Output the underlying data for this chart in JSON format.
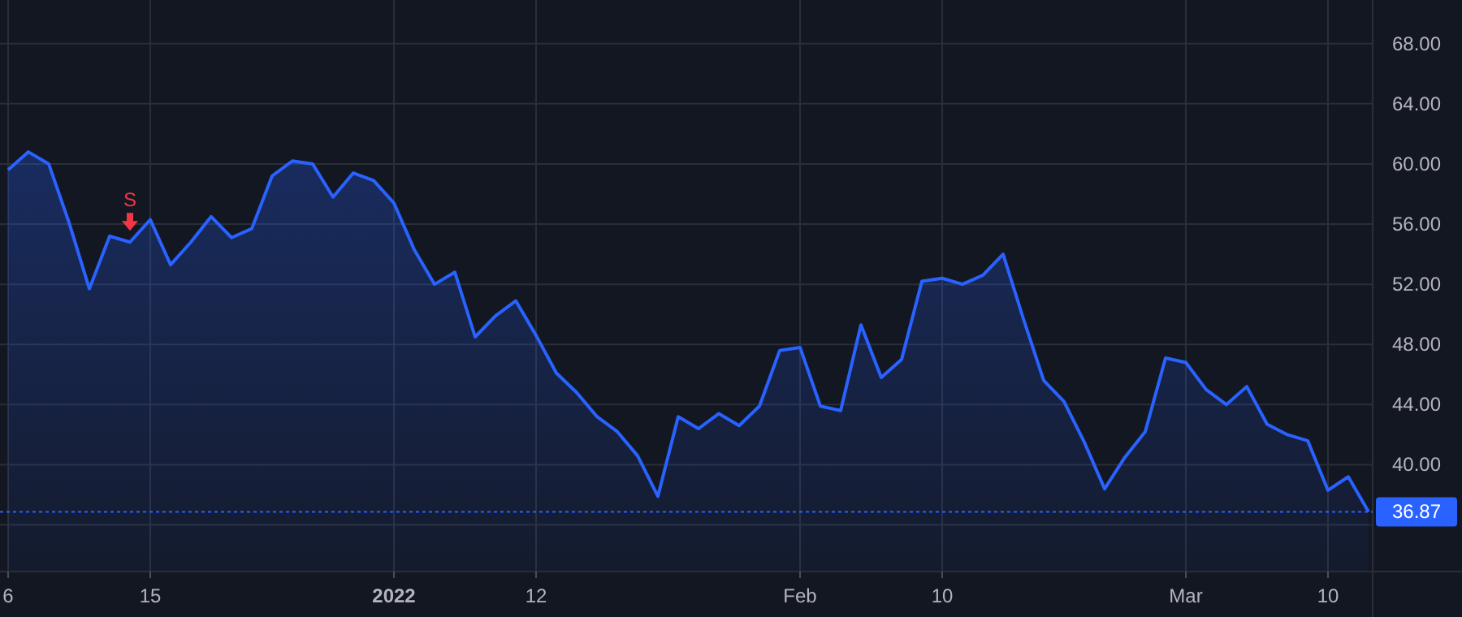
{
  "chart_data": {
    "type": "area",
    "categories": [
      "6",
      null,
      null,
      null,
      null,
      null,
      null,
      "15",
      null,
      null,
      null,
      null,
      null,
      null,
      null,
      null,
      null,
      null,
      null,
      "2022",
      null,
      null,
      null,
      null,
      null,
      null,
      "12",
      null,
      null,
      null,
      null,
      null,
      null,
      null,
      null,
      null,
      null,
      null,
      null,
      "Feb",
      null,
      null,
      null,
      null,
      null,
      null,
      "10",
      null,
      null,
      null,
      null,
      null,
      null,
      null,
      null,
      null,
      null,
      null,
      "Mar",
      null,
      null,
      null,
      null,
      null,
      null,
      "10",
      null,
      null
    ],
    "series": [
      {
        "color": "#2962ff",
        "values": [
          59.6,
          60.8,
          60.0,
          56.1,
          51.7,
          55.2,
          54.8,
          56.3,
          53.3,
          54.8,
          56.5,
          55.1,
          55.7,
          59.2,
          60.2,
          60.0,
          57.8,
          59.4,
          58.9,
          57.4,
          54.3,
          52.0,
          52.8,
          48.5,
          49.9,
          50.9,
          48.6,
          46.1,
          44.8,
          43.2,
          42.2,
          40.6,
          37.9,
          43.2,
          42.4,
          43.4,
          42.6,
          43.9,
          47.6,
          47.8,
          43.9,
          43.6,
          49.3,
          45.8,
          47.0,
          52.2,
          52.4,
          52.0,
          52.6,
          54.0,
          49.7,
          45.6,
          44.2,
          41.5,
          38.4,
          40.5,
          42.2,
          47.1,
          46.8,
          45.0,
          44.0,
          45.2,
          42.7,
          42.0,
          41.6,
          38.3,
          39.2,
          36.87
        ]
      }
    ],
    "ylim": [
      32.9,
      70.9
    ],
    "yticks": [
      {
        "value": 36,
        "label": null
      },
      {
        "value": 40,
        "label": "40.00"
      },
      {
        "value": 44,
        "label": "44.00"
      },
      {
        "value": 48,
        "label": "48.00"
      },
      {
        "value": 52,
        "label": "52.00"
      },
      {
        "value": 56,
        "label": "56.00"
      },
      {
        "value": 60,
        "label": "60.00"
      },
      {
        "value": 64,
        "label": "64.00"
      },
      {
        "value": 68,
        "label": "68.00"
      }
    ],
    "grid": true,
    "ref_lines": [
      {
        "axis": "y",
        "value": 36.87,
        "label": "36.87",
        "color": "#2962ff",
        "line_style": "dotted"
      }
    ],
    "annotations": [
      {
        "text": "S",
        "y": 54.8
      }
    ]
  }
}
